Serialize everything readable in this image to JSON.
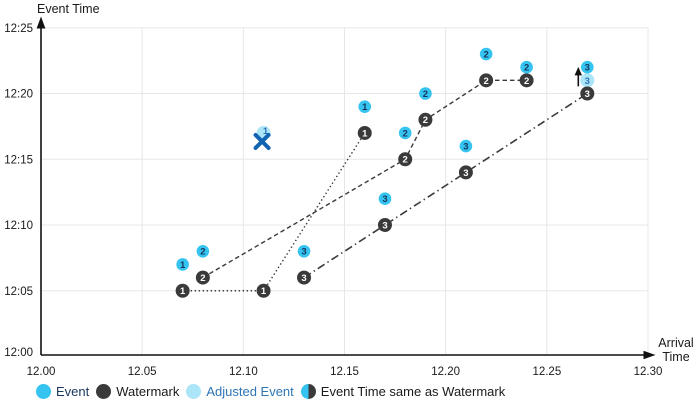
{
  "axes": {
    "y_title": "Event Time",
    "x_title_line1": "Arrival",
    "x_title_line2": "Time"
  },
  "legend": {
    "items": [
      {
        "label": "Event",
        "marker": "event"
      },
      {
        "label": "Watermark",
        "marker": "watermark"
      },
      {
        "label": "Adjusted Event",
        "marker": "adjusted"
      },
      {
        "label": "Event Time same as Watermark",
        "marker": "half"
      }
    ]
  },
  "colors": {
    "event": "#35c3f0",
    "watermark": "#3a3a3a",
    "adjusted": "#ace4f8",
    "event_number": "#17365d",
    "watermark_number": "#ffffff",
    "adjusted_number": "#2e75b6",
    "cross": "#1263b2",
    "arrow": "#111111",
    "grid": "#e7e7e7",
    "axis": "#111111",
    "tick_text": "#1a1a1a"
  },
  "chart_data": {
    "type": "scatter",
    "title": "",
    "xlabel": "Arrival Time",
    "ylabel": "Event Time",
    "xlim": [
      12.0,
      12.3
    ],
    "ylim_minutes": [
      0,
      25
    ],
    "grid": true,
    "legend_position": "bottom",
    "x_ticks": [
      {
        "v": 12.0,
        "label": "12.00"
      },
      {
        "v": 12.05,
        "label": "12.05"
      },
      {
        "v": 12.1,
        "label": "12.10"
      },
      {
        "v": 12.15,
        "label": "12.15"
      },
      {
        "v": 12.2,
        "label": "12.20"
      },
      {
        "v": 12.25,
        "label": "12.25"
      },
      {
        "v": 12.3,
        "label": "12.30"
      }
    ],
    "y_ticks": [
      {
        "min": 0,
        "label": "12:00"
      },
      {
        "min": 5,
        "label": "12:05"
      },
      {
        "min": 10,
        "label": "12:10"
      },
      {
        "min": 15,
        "label": "12:15"
      },
      {
        "min": 20,
        "label": "12:20"
      },
      {
        "min": 25,
        "label": "12:25"
      }
    ],
    "events": [
      {
        "group": 1,
        "arrival": 12.07,
        "min": 7,
        "time": "12:07"
      },
      {
        "group": 2,
        "arrival": 12.08,
        "min": 8,
        "time": "12:08"
      },
      {
        "group": 3,
        "arrival": 12.13,
        "min": 8,
        "time": "12:08"
      },
      {
        "group": 1,
        "arrival": 12.16,
        "min": 19,
        "time": "12:19"
      },
      {
        "group": 3,
        "arrival": 12.17,
        "min": 12,
        "time": "12:12"
      },
      {
        "group": 2,
        "arrival": 12.18,
        "min": 17,
        "time": "12:17"
      },
      {
        "group": 2,
        "arrival": 12.19,
        "min": 20,
        "time": "12:20"
      },
      {
        "group": 3,
        "arrival": 12.21,
        "min": 16,
        "time": "12:16"
      },
      {
        "group": 2,
        "arrival": 12.22,
        "min": 23,
        "time": "12:23"
      },
      {
        "group": 2,
        "arrival": 12.24,
        "min": 22,
        "time": "12:22"
      },
      {
        "group": 3,
        "arrival": 12.27,
        "min": 22,
        "time": "12:22"
      }
    ],
    "watermarks": [
      {
        "group": 1,
        "arrival": 12.07,
        "min": 5,
        "time": "12:05"
      },
      {
        "group": 1,
        "arrival": 12.11,
        "min": 5,
        "time": "12:05"
      },
      {
        "group": 1,
        "arrival": 12.16,
        "min": 17,
        "time": "12:17"
      },
      {
        "group": 2,
        "arrival": 12.08,
        "min": 6,
        "time": "12:06"
      },
      {
        "group": 2,
        "arrival": 12.18,
        "min": 15,
        "time": "12:15"
      },
      {
        "group": 2,
        "arrival": 12.19,
        "min": 18,
        "time": "12:18"
      },
      {
        "group": 2,
        "arrival": 12.22,
        "min": 21,
        "time": "12:21"
      },
      {
        "group": 2,
        "arrival": 12.24,
        "min": 21,
        "time": "12:21"
      },
      {
        "group": 3,
        "arrival": 12.13,
        "min": 6,
        "time": "12:06"
      },
      {
        "group": 3,
        "arrival": 12.17,
        "min": 10,
        "time": "12:10"
      },
      {
        "group": 3,
        "arrival": 12.21,
        "min": 14,
        "time": "12:14"
      },
      {
        "group": 3,
        "arrival": 12.27,
        "min": 20,
        "time": "12:20"
      }
    ],
    "adjusted_events": [
      {
        "group": 1,
        "arrival": 12.11,
        "min": 17,
        "time": "12:17",
        "crossed_out": true,
        "arrow_up": false
      },
      {
        "group": 3,
        "arrival": 12.27,
        "min": 21,
        "time": "12:21",
        "crossed_out": false,
        "arrow_up": true
      }
    ],
    "watermark_lines": [
      {
        "group": 1,
        "style": "dotted",
        "points": [
          [
            12.07,
            5
          ],
          [
            12.11,
            5
          ],
          [
            12.16,
            17
          ]
        ]
      },
      {
        "group": 2,
        "style": "dashed",
        "points": [
          [
            12.08,
            6
          ],
          [
            12.18,
            15
          ],
          [
            12.19,
            18
          ],
          [
            12.22,
            21
          ],
          [
            12.24,
            21
          ]
        ]
      },
      {
        "group": 3,
        "style": "dashdot",
        "points": [
          [
            12.13,
            6
          ],
          [
            12.17,
            10
          ],
          [
            12.21,
            14
          ],
          [
            12.27,
            20
          ]
        ]
      }
    ]
  }
}
